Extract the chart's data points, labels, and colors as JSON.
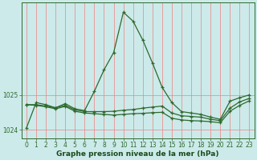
{
  "title": "Graphe pression niveau de la mer (hPa)",
  "bg_color": "#cceaea",
  "grid_color_h": "#f08080",
  "grid_color_v": "#f08080",
  "line_color": "#2d6a2d",
  "xlim": [
    -0.5,
    23.5
  ],
  "ylim": [
    1023.75,
    1027.65
  ],
  "yticks": [
    1024,
    1025
  ],
  "xticks": [
    0,
    1,
    2,
    3,
    4,
    5,
    6,
    7,
    8,
    9,
    10,
    11,
    12,
    13,
    14,
    15,
    16,
    17,
    18,
    19,
    20,
    21,
    22,
    23
  ],
  "series1_x": [
    0,
    1,
    2,
    3,
    4,
    5,
    6,
    7,
    8,
    9,
    10,
    11,
    12,
    13,
    14,
    15,
    16,
    17,
    18,
    19,
    20,
    21,
    22,
    23
  ],
  "series1_y": [
    1024.05,
    1024.78,
    1024.72,
    1024.63,
    1024.75,
    1024.6,
    1024.55,
    1025.1,
    1025.72,
    1026.22,
    1027.38,
    1027.12,
    1026.58,
    1025.92,
    1025.22,
    1024.78,
    1024.52,
    1024.48,
    1024.44,
    1024.36,
    1024.3,
    1024.82,
    1024.92,
    1025.0
  ],
  "series2_x": [
    0,
    1,
    2,
    3,
    4,
    5,
    6,
    7,
    8,
    9,
    10,
    11,
    12,
    13,
    14,
    15,
    16,
    17,
    18,
    19,
    20,
    21,
    22,
    23
  ],
  "series2_y": [
    1024.72,
    1024.72,
    1024.68,
    1024.63,
    1024.7,
    1024.57,
    1024.52,
    1024.52,
    1024.52,
    1024.53,
    1024.56,
    1024.58,
    1024.62,
    1024.65,
    1024.68,
    1024.48,
    1024.4,
    1024.38,
    1024.36,
    1024.3,
    1024.26,
    1024.62,
    1024.8,
    1024.9
  ],
  "series3_x": [
    0,
    1,
    2,
    3,
    4,
    5,
    6,
    7,
    8,
    9,
    10,
    11,
    12,
    13,
    14,
    15,
    16,
    17,
    18,
    19,
    20,
    21,
    22,
    23
  ],
  "series3_y": [
    1024.72,
    1024.7,
    1024.66,
    1024.6,
    1024.67,
    1024.53,
    1024.48,
    1024.46,
    1024.44,
    1024.42,
    1024.44,
    1024.46,
    1024.47,
    1024.49,
    1024.5,
    1024.33,
    1024.28,
    1024.26,
    1024.25,
    1024.23,
    1024.2,
    1024.53,
    1024.7,
    1024.83
  ],
  "label_fontsize": 5.5,
  "title_fontsize": 6.5,
  "axis_color": "#2d6a2d",
  "tick_color": "#2d6a2d",
  "label_color": "#1a4a1a"
}
